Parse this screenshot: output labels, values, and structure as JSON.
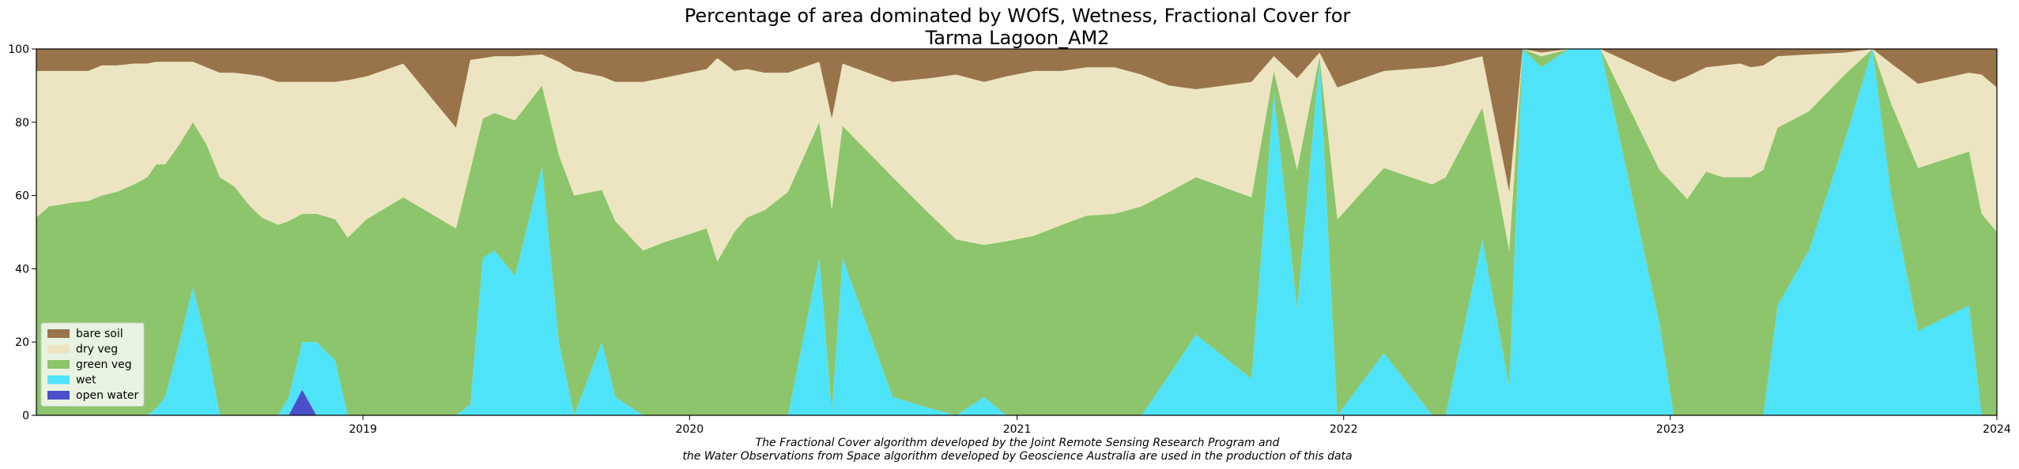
{
  "chart_data": {
    "type": "area",
    "stacked": true,
    "title_line1": "Percentage of area dominated by WOfS, Wetness, Fractional Cover for",
    "title_line2": "Tarma Lagoon_AM2",
    "xlabel": "",
    "ylabel": "",
    "ylim": [
      0,
      100
    ],
    "xlim": [
      "2018-01-01",
      "2024-01-01"
    ],
    "yticks": [
      0,
      20,
      40,
      60,
      80,
      100
    ],
    "xticks": [
      {
        "label": "2019",
        "date": "2019-01-01"
      },
      {
        "label": "2020",
        "date": "2020-01-01"
      },
      {
        "label": "2021",
        "date": "2021-01-01"
      },
      {
        "label": "2022",
        "date": "2022-01-01"
      },
      {
        "label": "2023",
        "date": "2023-01-01"
      },
      {
        "label": "2024",
        "date": "2024-01-01"
      }
    ],
    "grid": false,
    "legend_position": "lower-left",
    "legend": [
      "bare soil",
      "dry veg",
      "green veg",
      "wet",
      "open water"
    ],
    "colors": {
      "bare soil": "#99744a",
      "dry veg": "#ede5c1",
      "green veg": "#8cc56b",
      "wet": "#4fe3f9",
      "open water": "#4b4fca"
    },
    "footnote_line1": "The Fractional Cover algorithm developed by the Joint Remote Sensing Research Program and",
    "footnote_line2": "the Water Observations from Space algorithm developed by Geoscience Australia are used in the production of this data",
    "points": [
      {
        "date": "2018-01-01",
        "ow": 0,
        "wet": 0,
        "green": 54,
        "dry": 40,
        "bare": 6
      },
      {
        "date": "2018-01-15",
        "ow": 0,
        "wet": 0,
        "green": 57,
        "dry": 37,
        "bare": 6
      },
      {
        "date": "2018-02-08",
        "ow": 0,
        "wet": 0,
        "green": 58,
        "dry": 36,
        "bare": 6
      },
      {
        "date": "2018-02-28",
        "ow": 0,
        "wet": 0,
        "green": 58.5,
        "dry": 35.5,
        "bare": 6
      },
      {
        "date": "2018-03-15",
        "ow": 0,
        "wet": 0,
        "green": 60,
        "dry": 35.5,
        "bare": 4.5
      },
      {
        "date": "2018-04-01",
        "ow": 0,
        "wet": 0,
        "green": 61,
        "dry": 34.5,
        "bare": 4.5
      },
      {
        "date": "2018-04-20",
        "ow": 0,
        "wet": 0,
        "green": 63,
        "dry": 33,
        "bare": 4
      },
      {
        "date": "2018-05-05",
        "ow": 0,
        "wet": 0,
        "green": 65,
        "dry": 31,
        "bare": 4
      },
      {
        "date": "2018-05-15",
        "ow": 0,
        "wet": 2,
        "green": 66.5,
        "dry": 28,
        "bare": 3.5
      },
      {
        "date": "2018-05-25",
        "ow": 0,
        "wet": 5,
        "green": 63.5,
        "dry": 28,
        "bare": 3.5
      },
      {
        "date": "2018-06-10",
        "ow": 0,
        "wet": 20,
        "green": 54,
        "dry": 22.5,
        "bare": 3.5
      },
      {
        "date": "2018-06-25",
        "ow": 0,
        "wet": 35,
        "green": 45,
        "dry": 16.5,
        "bare": 3.5
      },
      {
        "date": "2018-07-10",
        "ow": 0,
        "wet": 20,
        "green": 54,
        "dry": 21,
        "bare": 5
      },
      {
        "date": "2018-07-25",
        "ow": 0,
        "wet": 0,
        "green": 65,
        "dry": 28.5,
        "bare": 6.5
      },
      {
        "date": "2018-08-10",
        "ow": 0,
        "wet": 0,
        "green": 62.5,
        "dry": 31,
        "bare": 6.5
      },
      {
        "date": "2018-08-28",
        "ow": 0,
        "wet": 0,
        "green": 57,
        "dry": 36,
        "bare": 7
      },
      {
        "date": "2018-09-10",
        "ow": 0,
        "wet": 0,
        "green": 54,
        "dry": 38.5,
        "bare": 7.5
      },
      {
        "date": "2018-09-28",
        "ow": 0,
        "wet": 0,
        "green": 52,
        "dry": 39,
        "bare": 9
      },
      {
        "date": "2018-10-10",
        "ow": 0,
        "wet": 5,
        "green": 48,
        "dry": 38,
        "bare": 9
      },
      {
        "date": "2018-10-25",
        "ow": 7,
        "wet": 13,
        "green": 35,
        "dry": 36,
        "bare": 9
      },
      {
        "date": "2018-11-10",
        "ow": 0,
        "wet": 20,
        "green": 35,
        "dry": 36,
        "bare": 9
      },
      {
        "date": "2018-12-01",
        "ow": 0,
        "wet": 15,
        "green": 38.5,
        "dry": 37.5,
        "bare": 9
      },
      {
        "date": "2018-12-15",
        "ow": 0,
        "wet": 0,
        "green": 48.5,
        "dry": 43,
        "bare": 8.5
      },
      {
        "date": "2019-01-05",
        "ow": 0,
        "wet": 0,
        "green": 53.5,
        "dry": 39,
        "bare": 7.5
      },
      {
        "date": "2019-02-15",
        "ow": 0,
        "wet": 0,
        "green": 59.5,
        "dry": 36.5,
        "bare": 4
      },
      {
        "date": "2019-04-15",
        "ow": 0,
        "wet": 0,
        "green": 51,
        "dry": 27.5,
        "bare": 21.5
      },
      {
        "date": "2019-05-01",
        "ow": 0,
        "wet": 3,
        "green": 64,
        "dry": 30,
        "bare": 3
      },
      {
        "date": "2019-05-15",
        "ow": 0,
        "wet": 43,
        "green": 38,
        "dry": 16.5,
        "bare": 2.5
      },
      {
        "date": "2019-05-28",
        "ow": 0,
        "wet": 45,
        "green": 37.5,
        "dry": 15.5,
        "bare": 2
      },
      {
        "date": "2019-06-20",
        "ow": 0,
        "wet": 38,
        "green": 42.5,
        "dry": 17.5,
        "bare": 2
      },
      {
        "date": "2019-07-20",
        "ow": 0,
        "wet": 68,
        "green": 22,
        "dry": 8.5,
        "bare": 1.5
      },
      {
        "date": "2019-08-08",
        "ow": 0,
        "wet": 20,
        "green": 51,
        "dry": 25.5,
        "bare": 3.5
      },
      {
        "date": "2019-08-25",
        "ow": 0,
        "wet": 0,
        "green": 60,
        "dry": 34,
        "bare": 6
      },
      {
        "date": "2019-09-25",
        "ow": 0,
        "wet": 20,
        "green": 41.5,
        "dry": 31,
        "bare": 7.5
      },
      {
        "date": "2019-10-10",
        "ow": 0,
        "wet": 5,
        "green": 48,
        "dry": 38,
        "bare": 9
      },
      {
        "date": "2019-11-10",
        "ow": 0,
        "wet": 0,
        "green": 45,
        "dry": 46,
        "bare": 9
      },
      {
        "date": "2019-12-01",
        "ow": 0,
        "wet": 0,
        "green": 47,
        "dry": 45,
        "bare": 8
      },
      {
        "date": "2020-01-20",
        "ow": 0,
        "wet": 0,
        "green": 51,
        "dry": 43.5,
        "bare": 5.5
      },
      {
        "date": "2020-02-01",
        "ow": 0,
        "wet": 0,
        "green": 42,
        "dry": 55.5,
        "bare": 2.5
      },
      {
        "date": "2020-02-20",
        "ow": 0,
        "wet": 0,
        "green": 50,
        "dry": 44,
        "bare": 6
      },
      {
        "date": "2020-03-05",
        "ow": 0,
        "wet": 0,
        "green": 54,
        "dry": 40.5,
        "bare": 5.5
      },
      {
        "date": "2020-03-25",
        "ow": 0,
        "wet": 0,
        "green": 56,
        "dry": 37.5,
        "bare": 6.5
      },
      {
        "date": "2020-04-20",
        "ow": 0,
        "wet": 0,
        "green": 61,
        "dry": 32.5,
        "bare": 6.5
      },
      {
        "date": "2020-05-25",
        "ow": 0,
        "wet": 43,
        "green": 37,
        "dry": 16.5,
        "bare": 3.5
      },
      {
        "date": "2020-06-08",
        "ow": 0,
        "wet": 1,
        "green": 55,
        "dry": 25,
        "bare": 19
      },
      {
        "date": "2020-06-20",
        "ow": 0,
        "wet": 43,
        "green": 36,
        "dry": 17,
        "bare": 4
      },
      {
        "date": "2020-08-15",
        "ow": 0,
        "wet": 5,
        "green": 60,
        "dry": 26,
        "bare": 9
      },
      {
        "date": "2020-09-25",
        "ow": 0,
        "wet": 2,
        "green": 53,
        "dry": 37,
        "bare": 8
      },
      {
        "date": "2020-10-25",
        "ow": 0,
        "wet": 0,
        "green": 48,
        "dry": 45,
        "bare": 7
      },
      {
        "date": "2020-11-25",
        "ow": 0,
        "wet": 5,
        "green": 41.5,
        "dry": 44.5,
        "bare": 9
      },
      {
        "date": "2020-12-20",
        "ow": 0,
        "wet": 0,
        "green": 47.5,
        "dry": 45,
        "bare": 7.5
      },
      {
        "date": "2021-01-20",
        "ow": 0,
        "wet": 0,
        "green": 49,
        "dry": 45,
        "bare": 6
      },
      {
        "date": "2021-02-20",
        "ow": 0,
        "wet": 0,
        "green": 52,
        "dry": 42,
        "bare": 6
      },
      {
        "date": "2021-03-20",
        "ow": 0,
        "wet": 0,
        "green": 54.5,
        "dry": 40.5,
        "bare": 5
      },
      {
        "date": "2021-04-20",
        "ow": 0,
        "wet": 0,
        "green": 55,
        "dry": 40,
        "bare": 5
      },
      {
        "date": "2021-05-20",
        "ow": 0,
        "wet": 0,
        "green": 57,
        "dry": 36,
        "bare": 7
      },
      {
        "date": "2021-06-20",
        "ow": 0,
        "wet": 11,
        "green": 50,
        "dry": 29,
        "bare": 10
      },
      {
        "date": "2021-07-20",
        "ow": 0,
        "wet": 22,
        "green": 43,
        "dry": 24,
        "bare": 11
      },
      {
        "date": "2021-09-20",
        "ow": 0,
        "wet": 10,
        "green": 49.5,
        "dry": 31.5,
        "bare": 9
      },
      {
        "date": "2021-10-15",
        "ow": 0,
        "wet": 88,
        "green": 6,
        "dry": 4,
        "bare": 2
      },
      {
        "date": "2021-11-10",
        "ow": 0,
        "wet": 29,
        "green": 38,
        "dry": 25,
        "bare": 8
      },
      {
        "date": "2021-12-05",
        "ow": 0,
        "wet": 97,
        "green": 1,
        "dry": 1,
        "bare": 1
      },
      {
        "date": "2021-12-25",
        "ow": 0,
        "wet": 0,
        "green": 53.5,
        "dry": 36,
        "bare": 10.5
      },
      {
        "date": "2022-02-15",
        "ow": 0,
        "wet": 17,
        "green": 50.5,
        "dry": 26.5,
        "bare": 6
      },
      {
        "date": "2022-04-10",
        "ow": 0,
        "wet": 0,
        "green": 63,
        "dry": 32,
        "bare": 5
      },
      {
        "date": "2022-04-25",
        "ow": 0,
        "wet": 0,
        "green": 65,
        "dry": 30.5,
        "bare": 4.5
      },
      {
        "date": "2022-06-05",
        "ow": 0,
        "wet": 48,
        "green": 36,
        "dry": 14,
        "bare": 2
      },
      {
        "date": "2022-07-05",
        "ow": 0,
        "wet": 8,
        "green": 37,
        "dry": 16,
        "bare": 39
      },
      {
        "date": "2022-07-20",
        "ow": 0,
        "wet": 100,
        "green": 0,
        "dry": 0,
        "bare": 0
      },
      {
        "date": "2022-08-10",
        "ow": 0,
        "wet": 95,
        "green": 3,
        "dry": 1,
        "bare": 1
      },
      {
        "date": "2022-09-10",
        "ow": 0,
        "wet": 100,
        "green": 0,
        "dry": 0,
        "bare": 0
      },
      {
        "date": "2022-10-15",
        "ow": 0,
        "wet": 100,
        "green": 0,
        "dry": 0,
        "bare": 0
      },
      {
        "date": "2022-12-20",
        "ow": 0,
        "wet": 25,
        "green": 42,
        "dry": 25.5,
        "bare": 7.5
      },
      {
        "date": "2023-01-05",
        "ow": 0,
        "wet": 0,
        "green": 63,
        "dry": 28,
        "bare": 9
      },
      {
        "date": "2023-01-20",
        "ow": 0,
        "wet": 0,
        "green": 59,
        "dry": 33.5,
        "bare": 7.5
      },
      {
        "date": "2023-02-10",
        "ow": 0,
        "wet": 0,
        "green": 66.5,
        "dry": 28.5,
        "bare": 5
      },
      {
        "date": "2023-03-01",
        "ow": 0,
        "wet": 0,
        "green": 65,
        "dry": 30.5,
        "bare": 4.5
      },
      {
        "date": "2023-03-20",
        "ow": 0,
        "wet": 0,
        "green": 65,
        "dry": 31,
        "bare": 4
      },
      {
        "date": "2023-04-01",
        "ow": 0,
        "wet": 0,
        "green": 65,
        "dry": 30,
        "bare": 5
      },
      {
        "date": "2023-04-15",
        "ow": 0,
        "wet": 0,
        "green": 67,
        "dry": 28.5,
        "bare": 4.5
      },
      {
        "date": "2023-05-01",
        "ow": 0,
        "wet": 30,
        "green": 48.5,
        "dry": 19.5,
        "bare": 2
      },
      {
        "date": "2023-06-05",
        "ow": 0,
        "wet": 45,
        "green": 38,
        "dry": 15.5,
        "bare": 1.5
      },
      {
        "date": "2023-07-15",
        "ow": 0,
        "wet": 75,
        "green": 18,
        "dry": 6,
        "bare": 1
      },
      {
        "date": "2023-08-15",
        "ow": 0,
        "wet": 100,
        "green": 0,
        "dry": 0,
        "bare": 0
      },
      {
        "date": "2023-09-05",
        "ow": 0,
        "wet": 60,
        "green": 25,
        "dry": 11,
        "bare": 4
      },
      {
        "date": "2023-10-05",
        "ow": 0,
        "wet": 23,
        "green": 44.5,
        "dry": 23,
        "bare": 9.5
      },
      {
        "date": "2023-12-01",
        "ow": 0,
        "wet": 30,
        "green": 42,
        "dry": 21.5,
        "bare": 6.5
      },
      {
        "date": "2023-12-15",
        "ow": 0,
        "wet": 0,
        "green": 55,
        "dry": 38,
        "bare": 7
      },
      {
        "date": "2024-01-01",
        "ow": 0,
        "wet": 0,
        "green": 50,
        "dry": 39.5,
        "bare": 10.5
      }
    ]
  }
}
